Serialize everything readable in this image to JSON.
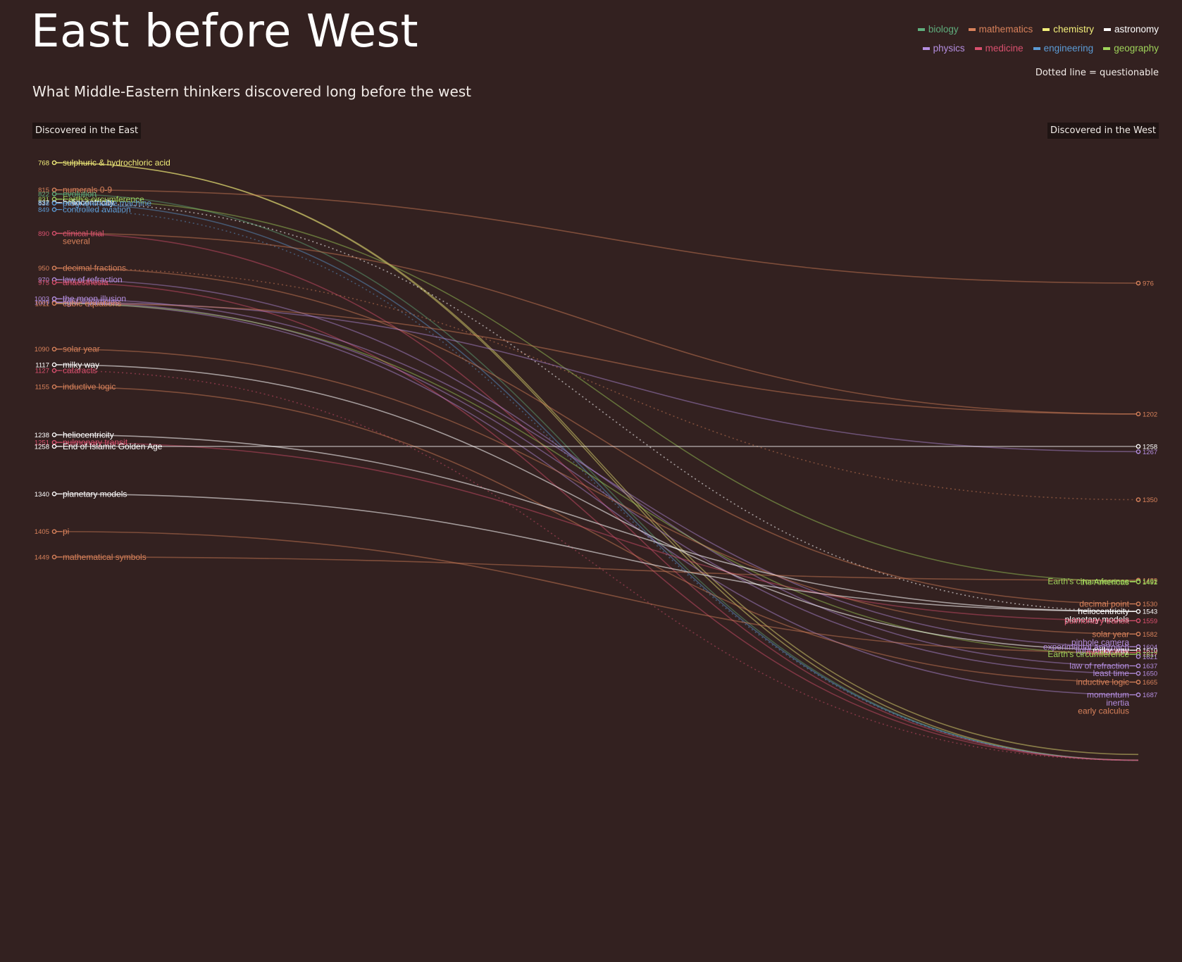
{
  "title": "East before West",
  "subtitle": "What Middle-Eastern thinkers discovered long before the west",
  "east_header": "Discovered in the East",
  "west_header": "Discovered in the West",
  "note": "Dotted line = questionable",
  "colors": {
    "background": "#332120",
    "biology": "#5fae7d",
    "mathematics": "#d9825b",
    "chemistry": "#f2ee7a",
    "astronomy": "#ffffff",
    "physics": "#b48ee0",
    "medicine": "#d9506e",
    "engineering": "#5b9bd5",
    "geography": "#9fd35a"
  },
  "legend": [
    {
      "key": "biology",
      "label": "biology",
      "color": "#5fae7d"
    },
    {
      "key": "mathematics",
      "label": "mathematics",
      "color": "#d9825b"
    },
    {
      "key": "chemistry",
      "label": "chemistry",
      "color": "#f2ee7a"
    },
    {
      "key": "astronomy",
      "label": "astronomy",
      "color": "#ffffff"
    },
    {
      "key": "physics",
      "label": "physics",
      "color": "#b48ee0"
    },
    {
      "key": "medicine",
      "label": "medicine",
      "color": "#d9506e"
    },
    {
      "key": "engineering",
      "label": "engineering",
      "color": "#5b9bd5"
    },
    {
      "key": "geography",
      "label": "geography",
      "color": "#9fd35a"
    }
  ],
  "chart_data": {
    "type": "slope",
    "axis_range": [
      750,
      1800
    ],
    "east": [
      {
        "year": 768,
        "label": "sulphuric & hydrochloric acid",
        "category": "chemistry"
      },
      {
        "year": 815,
        "label": "numerals 0-9",
        "category": "mathematics"
      },
      {
        "year": 822,
        "label": "evolution",
        "category": "biology"
      },
      {
        "year": 831,
        "label": "Earth's circumference",
        "category": "geography"
      },
      {
        "year": 837,
        "label": "heliocentricity",
        "category": "astronomy"
      },
      {
        "year": 838,
        "label": "programmable machine",
        "category": "engineering"
      },
      {
        "year": 849,
        "label": "controlled aviation",
        "category": "engineering"
      },
      {
        "year": 890,
        "label": "clinical trial",
        "category": "medicine"
      },
      {
        "year": null,
        "label": "several",
        "category": "mathematics"
      },
      {
        "year": 950,
        "label": "decimal fractions",
        "category": "mathematics"
      },
      {
        "year": 970,
        "label": "law of refraction",
        "category": "physics"
      },
      {
        "year": 975,
        "label": "anaesthesia",
        "category": "medicine"
      },
      {
        "year": 1003,
        "label": "the moon illusion",
        "category": "physics"
      },
      {
        "year": 1009,
        "label": "light = particles",
        "category": "physics"
      },
      {
        "year": 1011,
        "label": "cubic equations",
        "category": "mathematics"
      },
      {
        "year": 1090,
        "label": "solar year",
        "category": "mathematics"
      },
      {
        "year": 1117,
        "label": "milky way",
        "category": "astronomy"
      },
      {
        "year": 1127,
        "label": "cataracts",
        "category": "medicine"
      },
      {
        "year": 1155,
        "label": "inductive logic",
        "category": "mathematics"
      },
      {
        "year": 1238,
        "label": "heliocentricity",
        "category": "astronomy"
      },
      {
        "year": 1251,
        "label": "pulmonary transit",
        "category": "medicine"
      },
      {
        "year": 1258,
        "label": "End of Islamic Golden Age",
        "category": "astronomy"
      },
      {
        "year": 1340,
        "label": "planetary models",
        "category": "astronomy"
      },
      {
        "year": 1405,
        "label": "pi",
        "category": "mathematics"
      },
      {
        "year": 1449,
        "label": "mathematical symbols",
        "category": "mathematics"
      }
    ],
    "west": [
      {
        "year": 976,
        "label": "",
        "category": "mathematics"
      },
      {
        "year": 1202,
        "label": "",
        "category": "mathematics"
      },
      {
        "year": 1258,
        "label": "",
        "category": "astronomy"
      },
      {
        "year": 1267,
        "label": "",
        "category": "physics"
      },
      {
        "year": 1350,
        "label": "",
        "category": "mathematics"
      },
      {
        "year": 1489,
        "label": "",
        "category": "mathematics"
      },
      {
        "year": 1491,
        "label": "Earth's circumference",
        "category": "geography"
      },
      {
        "year": 1492,
        "label": "the Americas",
        "category": "geography"
      },
      {
        "year": 1530,
        "label": "decimal point",
        "category": "mathematics"
      },
      {
        "year": 1543,
        "label": "heliocentricity",
        "category": "astronomy"
      },
      {
        "year": null,
        "label": "planetary models",
        "category": "astronomy"
      },
      {
        "year": 1559,
        "label": "pulmonary transit",
        "category": "medicine"
      },
      {
        "year": 1582,
        "label": "solar year",
        "category": "mathematics"
      },
      {
        "year": null,
        "label": "pinhole camera",
        "category": "physics"
      },
      {
        "year": null,
        "label": "light & the eye",
        "category": "physics"
      },
      {
        "year": 1604,
        "label": "experimental approach",
        "category": "physics"
      },
      {
        "year": 1610,
        "label": "milky way",
        "category": "astronomy"
      },
      {
        "year": 1614,
        "label": "metabolism",
        "category": "medicine"
      },
      {
        "year": 1617,
        "label": "Earth's circumference",
        "category": "geography"
      },
      {
        "year": 1621,
        "label": "",
        "category": "physics"
      },
      {
        "year": 1637,
        "label": "law of refraction",
        "category": "physics"
      },
      {
        "year": 1650,
        "label": "least time",
        "category": "physics"
      },
      {
        "year": 1665,
        "label": "inductive logic",
        "category": "mathematics"
      },
      {
        "year": 1687,
        "label": "momentum",
        "category": "physics"
      },
      {
        "year": null,
        "label": "inertia",
        "category": "physics"
      },
      {
        "year": null,
        "label": "early calculus",
        "category": "mathematics"
      }
    ],
    "links": [
      {
        "from": 768,
        "to": 1790,
        "category": "chemistry",
        "dotted": false
      },
      {
        "from": 768,
        "to": 1800,
        "category": "chemistry",
        "dotted": false
      },
      {
        "from": 815,
        "to": 976,
        "category": "mathematics",
        "dotted": false
      },
      {
        "from": 822,
        "to": 1800,
        "category": "biology",
        "dotted": false
      },
      {
        "from": 831,
        "to": 1491,
        "category": "geography",
        "dotted": false
      },
      {
        "from": 837,
        "to": 1543,
        "category": "astronomy",
        "dotted": true
      },
      {
        "from": 838,
        "to": 1800,
        "category": "engineering",
        "dotted": false
      },
      {
        "from": 849,
        "to": 1800,
        "category": "engineering",
        "dotted": true
      },
      {
        "from": 890,
        "to": 1202,
        "category": "mathematics",
        "dotted": false
      },
      {
        "from": 890,
        "to": 1800,
        "category": "medicine",
        "dotted": false
      },
      {
        "from": 950,
        "to": 1530,
        "category": "mathematics",
        "dotted": false
      },
      {
        "from": 950,
        "to": 1350,
        "category": "mathematics",
        "dotted": true
      },
      {
        "from": 970,
        "to": 1637,
        "category": "physics",
        "dotted": false
      },
      {
        "from": 975,
        "to": 1800,
        "category": "medicine",
        "dotted": false
      },
      {
        "from": 1003,
        "to": 1604,
        "category": "physics",
        "dotted": false
      },
      {
        "from": 1009,
        "to": 1267,
        "category": "physics",
        "dotted": false
      },
      {
        "from": 1009,
        "to": 1650,
        "category": "physics",
        "dotted": false
      },
      {
        "from": 1011,
        "to": 1202,
        "category": "mathematics",
        "dotted": false
      },
      {
        "from": 1011,
        "to": 1687,
        "category": "physics",
        "dotted": false
      },
      {
        "from": 1011,
        "to": 1617,
        "category": "geography",
        "dotted": false
      },
      {
        "from": 1090,
        "to": 1582,
        "category": "mathematics",
        "dotted": false
      },
      {
        "from": 1117,
        "to": 1610,
        "category": "astronomy",
        "dotted": false
      },
      {
        "from": 1127,
        "to": 1800,
        "category": "medicine",
        "dotted": true
      },
      {
        "from": 1155,
        "to": 1665,
        "category": "mathematics",
        "dotted": false
      },
      {
        "from": 1238,
        "to": 1543,
        "category": "astronomy",
        "dotted": false
      },
      {
        "from": 1251,
        "to": 1559,
        "category": "medicine",
        "dotted": false
      },
      {
        "from": 1258,
        "to": 1258,
        "category": "astronomy",
        "dotted": false
      },
      {
        "from": 1340,
        "to": 1543,
        "category": "astronomy",
        "dotted": false
      },
      {
        "from": 1405,
        "to": 1614,
        "category": "mathematics",
        "dotted": false
      },
      {
        "from": 1449,
        "to": 1489,
        "category": "mathematics",
        "dotted": false
      }
    ]
  }
}
